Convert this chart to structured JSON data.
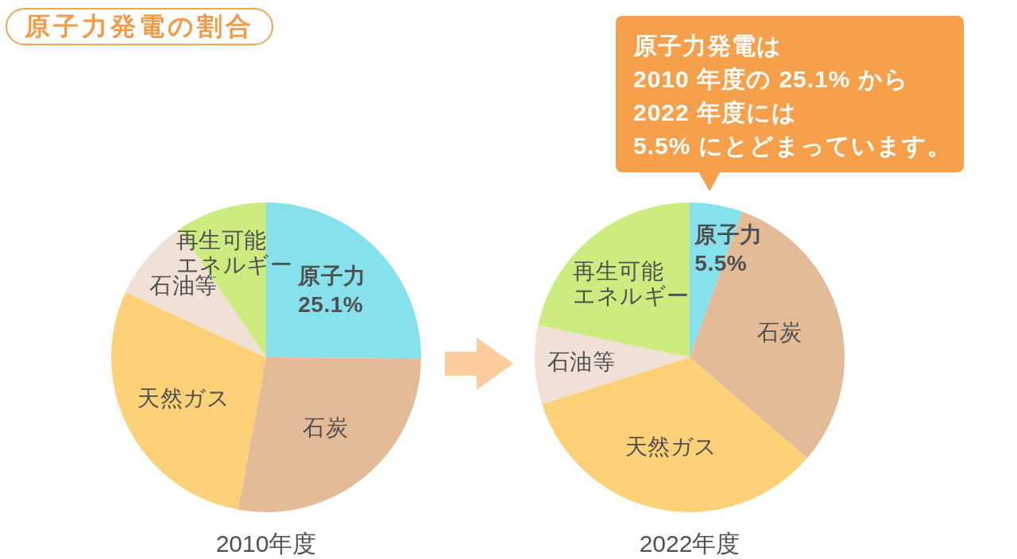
{
  "chart_data": [
    {
      "type": "pie",
      "title": "原子力発電の割合",
      "xlabel": "2010年度",
      "categories": [
        "原子力",
        "石炭",
        "天然ガス",
        "石油等",
        "再生可能エネルギー"
      ],
      "values": [
        25.1,
        27.8,
        29.0,
        8.6,
        9.5
      ],
      "colors": [
        "#87e1ed",
        "#e3bb97",
        "#fcd177",
        "#f0e0d6",
        "#cdec80"
      ],
      "value_labels": [
        "25.1%",
        null,
        null,
        null,
        null
      ]
    },
    {
      "type": "pie",
      "xlabel": "2022年度",
      "categories": [
        "原子力",
        "石炭",
        "天然ガス",
        "石油等",
        "再生可能エネルギー"
      ],
      "values": [
        5.5,
        30.8,
        33.8,
        8.2,
        21.7
      ],
      "colors": [
        "#87e1ed",
        "#e3bb97",
        "#fcd177",
        "#f0e0d6",
        "#cdec80"
      ],
      "value_labels": [
        "5.5%",
        null,
        null,
        null,
        null
      ],
      "annotations": [
        "原子力発電は\n2010 年度の 25.1% から\n2022 年度には\n5.5% にとどまっています。"
      ]
    }
  ]
}
